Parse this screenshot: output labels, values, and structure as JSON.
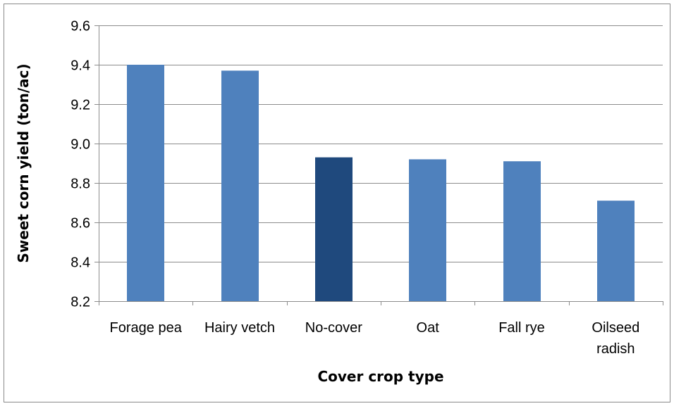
{
  "chart_data": {
    "type": "bar",
    "xlabel": "Cover crop type",
    "ylabel": "Sweet corn yield (ton/ac)",
    "categories": [
      [
        "Forage pea"
      ],
      [
        "Hairy vetch"
      ],
      [
        "No-cover"
      ],
      [
        "Oat"
      ],
      [
        "Fall rye"
      ],
      [
        "Oilseed",
        "radish"
      ]
    ],
    "values": [
      9.4,
      9.37,
      8.93,
      8.92,
      8.91,
      8.71
    ],
    "ylim": [
      8.2,
      9.6
    ],
    "yticks": [
      "8.2",
      "8.4",
      "8.6",
      "8.8",
      "9.0",
      "9.2",
      "9.4",
      "9.6"
    ],
    "grid": true,
    "colors": {
      "default_bar": "#4f81bd",
      "highlight_bar": "#1f497d",
      "gridline": "#8c8c8c",
      "axis": "#8c8c8c"
    },
    "highlight_category": "No-cover"
  }
}
